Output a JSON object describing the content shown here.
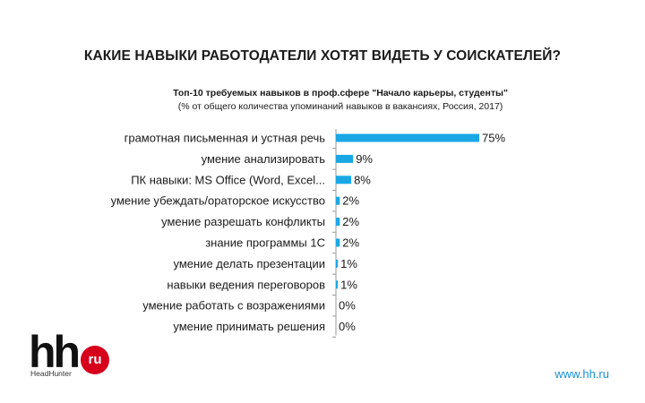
{
  "page": {
    "title": "КАКИЕ НАВЫКИ РАБОТОДАТЕЛИ ХОТЯТ ВИДЕТЬ У СОИСКАТЕЛЕЙ?",
    "website": "www.hh.ru"
  },
  "logo": {
    "mark": "hh",
    "badge": "ru",
    "wordmark": "HeadHunter"
  },
  "chart_data": {
    "type": "bar",
    "orientation": "horizontal",
    "title": "Топ-10 требуемых навыков в проф.сфере \"Начало карьеры, студенты\"",
    "subtitle": "(% от общего количества упоминаний навыков в вакансиях, Россия, 2017)",
    "categories": [
      "грамотная письменная и устная речь",
      "умение анализировать",
      "ПК навыки: MS Office (Word, Excel...",
      "умение убеждать/ораторское искусство",
      "умение разрешать конфликты",
      "знание программы 1С",
      "умение делать презентации",
      "навыки ведения переговоров",
      "умение работать с возражениями",
      "умение принимать решения"
    ],
    "values": [
      75,
      9,
      8,
      2,
      2,
      2,
      1,
      1,
      0,
      0
    ],
    "value_labels": [
      "75%",
      "9%",
      "8%",
      "2%",
      "2%",
      "2%",
      "1%",
      "1%",
      "0%",
      "0%"
    ],
    "xlim": [
      0,
      75
    ],
    "grid": false,
    "legend": "none",
    "bar_color": "#1aa7e4",
    "axis_color": "#9a9a9a"
  }
}
